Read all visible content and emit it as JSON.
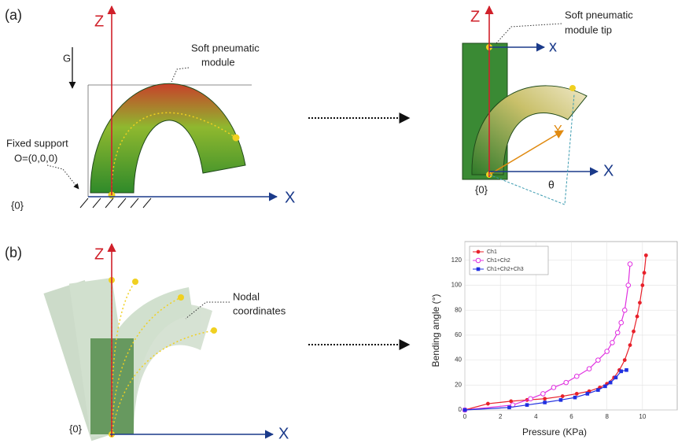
{
  "panel_a": {
    "label": "(a)",
    "left": {
      "z_label": "Z",
      "gravity_label": "G",
      "module_label": [
        "Soft pneumatic",
        "module"
      ],
      "support_label": [
        "Fixed support",
        "O=(0,0,0)"
      ],
      "origin_label": "{0}",
      "x_label": "X"
    },
    "right": {
      "z_label": "Z",
      "tip_x_label": "x",
      "tip_label": [
        "Soft pneumatic",
        "module tip"
      ],
      "y_label": "Y",
      "x_label": "X",
      "origin_label": "{0}",
      "angle_label": "θ"
    }
  },
  "panel_b": {
    "label": "(b)",
    "z_label": "Z",
    "x_label": "X",
    "origin_label": "{0}",
    "nodal_label": [
      "Nodal",
      "coordinates"
    ]
  },
  "chart_data": {
    "type": "line",
    "x_label": "Pressure (KPa)",
    "y_label": "Bending angle (°)",
    "xlim": [
      0,
      12
    ],
    "ylim": [
      0,
      130
    ],
    "xticks": [
      0,
      2,
      4,
      6,
      8,
      10
    ],
    "yticks": [
      0,
      20,
      40,
      60,
      80,
      100,
      120
    ],
    "grid": true,
    "legend": "upper-left",
    "series": [
      {
        "name": "Ch1",
        "color": "#e8202a",
        "marker": "circle",
        "x": [
          0,
          1.3,
          2.6,
          3.5,
          4.5,
          5.5,
          6.3,
          7,
          7.6,
          8,
          8.4,
          8.7,
          9,
          9.3,
          9.5,
          9.7,
          9.85,
          10,
          10.1,
          10.2
        ],
        "values": [
          0,
          5,
          7,
          8,
          9,
          11,
          13,
          15,
          18,
          21,
          26,
          32,
          40,
          52,
          63,
          75,
          86,
          100,
          110,
          124
        ]
      },
      {
        "name": "Ch1+Ch2",
        "color": "#e030e0",
        "marker": "open-circle",
        "x": [
          0,
          2.7,
          3.7,
          4.4,
          5,
          5.7,
          6.3,
          7,
          7.5,
          8,
          8.3,
          8.6,
          8.8,
          9,
          9.2,
          9.3
        ],
        "values": [
          0,
          4,
          9,
          13,
          18,
          22,
          27,
          33,
          40,
          47,
          54,
          62,
          70,
          80,
          100,
          117
        ]
      },
      {
        "name": "Ch1+Ch2+Ch3",
        "color": "#2030e0",
        "marker": "square",
        "x": [
          0,
          2.5,
          3.5,
          4.5,
          5.4,
          6.2,
          6.9,
          7.5,
          7.9,
          8.2,
          8.5,
          8.8,
          9.1
        ],
        "values": [
          0,
          2,
          4,
          6,
          8,
          10,
          13,
          16,
          19,
          22,
          26,
          31,
          32
        ]
      }
    ]
  }
}
